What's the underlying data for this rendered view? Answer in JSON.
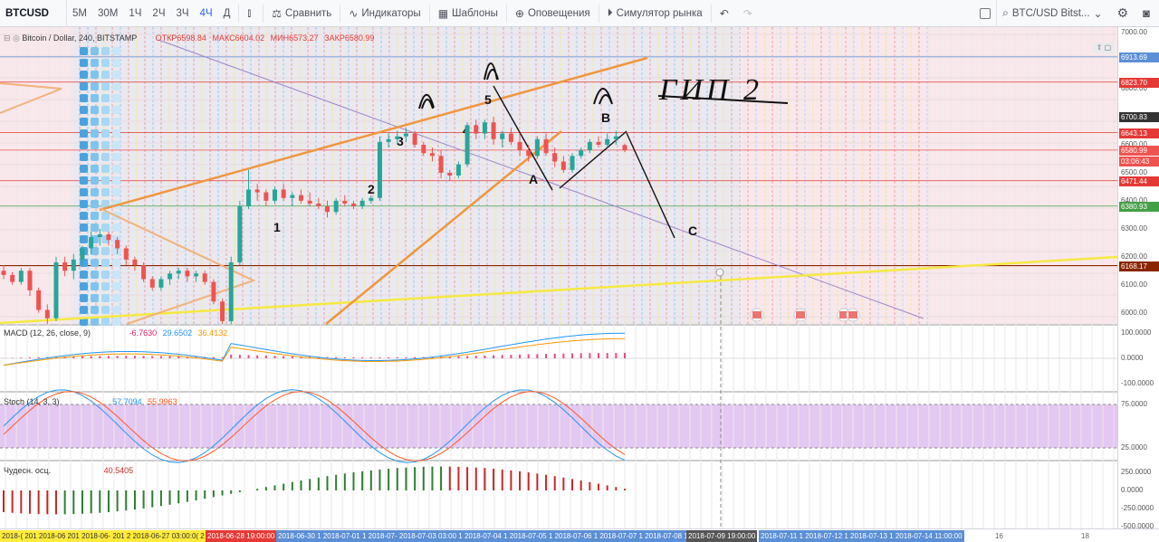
{
  "toolbar": {
    "symbol": "BTCUSD",
    "intervals": [
      "5М",
      "30М",
      "1Ч",
      "2Ч",
      "3Ч",
      "4Ч",
      "Д"
    ],
    "active_interval": "4Ч",
    "compare": "Сравнить",
    "indicators": "Индикаторы",
    "templates": "Шаблоны",
    "alerts": "Оповещения",
    "simulator": "Симулятор рынка",
    "symbol_search": "BTC/USD Bitst..."
  },
  "header": {
    "title": "Bitcoin / Dollar, 240, BITSTAMP",
    "open": "ОТКР6598.84",
    "high": "МАКС6604.02",
    "low": "МИН6573.27",
    "close": "ЗАКР6580.99"
  },
  "price_axis": {
    "ticks": [
      "7000.00",
      "6900.00",
      "6800.00",
      "6700.00",
      "6600.00",
      "6500.00",
      "6400.00",
      "6300.00",
      "6200.00",
      "6100.00",
      "6000.00"
    ],
    "labels": [
      {
        "text": "6913.69",
        "color": "#5b8fd6"
      },
      {
        "text": "6823.70",
        "color": "#e53935"
      },
      {
        "text": "6700.83",
        "color": "#333333"
      },
      {
        "text": "6643.13",
        "color": "#e53935"
      },
      {
        "text": "6580.99",
        "color": "#ef5350"
      },
      {
        "text": "03:06:43",
        "color": "#ef5350"
      },
      {
        "text": "6471.44",
        "color": "#e53935"
      },
      {
        "text": "6380.93",
        "color": "#43a047"
      },
      {
        "text": "6168.17",
        "color": "#8b2500"
      }
    ]
  },
  "annotations": {
    "waves": [
      "1",
      "2",
      "3",
      "4",
      "5",
      "A",
      "B",
      "C"
    ],
    "handwriting": "ГИП 2"
  },
  "macd": {
    "title": "MACD (12, 26, close, 9)",
    "v1": "-6.7630",
    "v2": "29.6502",
    "v3": "36.4132",
    "ticks": [
      "100.0000",
      "0.0000",
      "-100.0000"
    ]
  },
  "stoch": {
    "title": "Stoch (14, 3, 3)",
    "v1": "57.7094",
    "v2": "55.9963",
    "ticks": [
      "75.0000",
      "25.0000"
    ]
  },
  "ao": {
    "title": "Чудесн. осц.",
    "v1": "40.5405",
    "ticks": [
      "250.0000",
      "0.0000",
      "-250.0000",
      "-500.0000"
    ]
  },
  "datebar": {
    "labels": [
      "2018-( 201 2018-06 201 2018-06- 201 2 2018-06-27 03:00:0( 2",
      "2018-06-28 19:00:00",
      "2018-06-30 1 2018-07-01 1 2018-07- 2018-07-03 03:00 1 2018-07-04 1 2018-07-05 1 2018-07-06 1 2018-07-07 1 2018-07-08 1 2018-07-",
      "2018-07-09 19:00:00",
      "2018-07-11 1 2018-07-12 1 2018-07-13 1 2018-07-14 11:00:00",
      "16",
      "18"
    ]
  },
  "chart_data": {
    "type": "candlestick",
    "title": "Bitcoin / Dollar, 240, BITSTAMP",
    "ylim": [
      5960,
      7020
    ],
    "candles": [
      [
        6150,
        6170,
        6120,
        6135
      ],
      [
        6135,
        6145,
        6100,
        6110
      ],
      [
        6110,
        6160,
        6100,
        6150
      ],
      [
        6150,
        6160,
        6060,
        6080
      ],
      [
        6080,
        6090,
        6000,
        6010
      ],
      [
        6010,
        6030,
        5960,
        5980
      ],
      [
        5980,
        6200,
        5970,
        6180
      ],
      [
        6180,
        6200,
        6130,
        6150
      ],
      [
        6150,
        6210,
        6120,
        6190
      ],
      [
        6190,
        6240,
        6170,
        6230
      ],
      [
        6230,
        6290,
        6210,
        6270
      ],
      [
        6270,
        6300,
        6240,
        6280
      ],
      [
        6280,
        6290,
        6240,
        6260
      ],
      [
        6260,
        6270,
        6210,
        6230
      ],
      [
        6230,
        6240,
        6170,
        6190
      ],
      [
        6190,
        6200,
        6150,
        6170
      ],
      [
        6170,
        6180,
        6110,
        6120
      ],
      [
        6120,
        6130,
        6080,
        6090
      ],
      [
        6090,
        6130,
        6080,
        6120
      ],
      [
        6120,
        6150,
        6100,
        6140
      ],
      [
        6140,
        6160,
        6120,
        6150
      ],
      [
        6150,
        6160,
        6110,
        6130
      ],
      [
        6130,
        6150,
        6110,
        6140
      ],
      [
        6140,
        6150,
        6100,
        6110
      ],
      [
        6110,
        6120,
        6030,
        6040
      ],
      [
        6040,
        6050,
        5960,
        5970
      ],
      [
        5970,
        6200,
        5960,
        6180
      ],
      [
        6180,
        6400,
        6170,
        6380
      ],
      [
        6380,
        6510,
        6370,
        6440
      ],
      [
        6440,
        6460,
        6400,
        6430
      ],
      [
        6430,
        6440,
        6380,
        6400
      ],
      [
        6400,
        6450,
        6390,
        6440
      ],
      [
        6440,
        6460,
        6400,
        6410
      ],
      [
        6410,
        6430,
        6380,
        6420
      ],
      [
        6420,
        6440,
        6390,
        6400
      ],
      [
        6400,
        6430,
        6380,
        6390
      ],
      [
        6390,
        6410,
        6370,
        6380
      ],
      [
        6380,
        6400,
        6340,
        6360
      ],
      [
        6360,
        6410,
        6350,
        6400
      ],
      [
        6400,
        6420,
        6380,
        6390
      ],
      [
        6390,
        6400,
        6370,
        6380
      ],
      [
        6380,
        6410,
        6370,
        6400
      ],
      [
        6400,
        6420,
        6390,
        6410
      ],
      [
        6410,
        6630,
        6400,
        6610
      ],
      [
        6610,
        6640,
        6590,
        6620
      ],
      [
        6620,
        6650,
        6600,
        6630
      ],
      [
        6630,
        6660,
        6610,
        6640
      ],
      [
        6640,
        6650,
        6590,
        6600
      ],
      [
        6600,
        6610,
        6560,
        6570
      ],
      [
        6570,
        6590,
        6540,
        6560
      ],
      [
        6560,
        6580,
        6480,
        6500
      ],
      [
        6500,
        6510,
        6470,
        6490
      ],
      [
        6490,
        6540,
        6480,
        6530
      ],
      [
        6530,
        6680,
        6520,
        6670
      ],
      [
        6670,
        6690,
        6620,
        6640
      ],
      [
        6640,
        6690,
        6620,
        6680
      ],
      [
        6680,
        6700,
        6600,
        6620
      ],
      [
        6620,
        6650,
        6590,
        6640
      ],
      [
        6640,
        6660,
        6600,
        6610
      ],
      [
        6610,
        6640,
        6560,
        6580
      ],
      [
        6580,
        6600,
        6540,
        6560
      ],
      [
        6560,
        6630,
        6550,
        6620
      ],
      [
        6620,
        6640,
        6560,
        6570
      ],
      [
        6570,
        6590,
        6520,
        6540
      ],
      [
        6540,
        6560,
        6500,
        6510
      ],
      [
        6510,
        6570,
        6500,
        6560
      ],
      [
        6560,
        6590,
        6550,
        6580
      ],
      [
        6580,
        6620,
        6570,
        6610
      ],
      [
        6610,
        6630,
        6590,
        6600
      ],
      [
        6600,
        6640,
        6590,
        6620
      ],
      [
        6620,
        6650,
        6600,
        6630
      ],
      [
        6598.84,
        6604.02,
        6573.27,
        6580.99
      ]
    ]
  }
}
